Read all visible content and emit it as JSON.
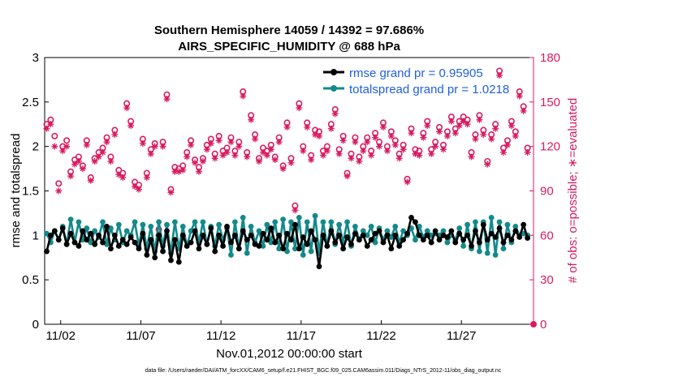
{
  "chart_data": {
    "type": "line",
    "title": "Southern Hemisphere 14059 / 14392 = 97.686%",
    "subtitle": "AIRS_SPECIFIC_HUMIDITY @ 688 hPa",
    "xlabel": "Nov.01,2012 00:00:00 start",
    "ylabel": "rmse and totalspread",
    "y2label": "# of obs: o=possible; ∗=evaluated",
    "footer": "data file: /Users/raeder/DAI/ATM_forcXX/CAM6_setup/f.e21.FHIST_BGC.f09_025.CAM6assim.011/Diags_NTrS_2012-11/obs_diag_output.nc",
    "xlim": [
      1,
      31.5
    ],
    "ylim": [
      0,
      3
    ],
    "y2lim": [
      0,
      180
    ],
    "x_ticks": [
      2,
      7,
      12,
      17,
      22,
      27
    ],
    "x_tick_labels": [
      "11/02",
      "11/07",
      "11/12",
      "11/17",
      "11/22",
      "11/27"
    ],
    "y_ticks": [
      "0",
      "0.5",
      "1",
      "1.5",
      "2",
      "2.5",
      "3"
    ],
    "y2_ticks": [
      "0",
      "30",
      "60",
      "90",
      "120",
      "150",
      "180"
    ],
    "grid": false,
    "legend_position": "top-right",
    "colors": {
      "rmse": "#000000",
      "totalspread": "#138a8a",
      "obs": "#d81b60",
      "legend_text": "#1f5fe0",
      "right_axis": "#d81b60"
    },
    "series": [
      {
        "name": "rmse grand pr = 0.95905",
        "axis": "left",
        "x": [
          1.125,
          1.375,
          1.625,
          1.875,
          2.125,
          2.375,
          2.625,
          2.875,
          3.125,
          3.375,
          3.625,
          3.875,
          4.125,
          4.375,
          4.625,
          4.875,
          5.125,
          5.375,
          5.625,
          5.875,
          6.125,
          6.375,
          6.625,
          6.875,
          7.125,
          7.375,
          7.625,
          7.875,
          8.125,
          8.375,
          8.625,
          8.875,
          9.125,
          9.375,
          9.625,
          9.875,
          10.125,
          10.375,
          10.625,
          10.875,
          11.125,
          11.375,
          11.625,
          11.875,
          12.125,
          12.375,
          12.625,
          12.875,
          13.125,
          13.375,
          13.625,
          13.875,
          14.125,
          14.375,
          14.625,
          14.875,
          15.125,
          15.375,
          15.625,
          15.875,
          16.125,
          16.375,
          16.625,
          16.875,
          17.125,
          17.375,
          17.625,
          17.875,
          18.125,
          18.375,
          18.625,
          18.875,
          19.125,
          19.375,
          19.625,
          19.875,
          20.125,
          20.375,
          20.625,
          20.875,
          21.125,
          21.375,
          21.625,
          21.875,
          22.125,
          22.375,
          22.625,
          22.875,
          23.125,
          23.375,
          23.625,
          23.875,
          24.125,
          24.375,
          24.625,
          24.875,
          25.125,
          25.375,
          25.625,
          25.875,
          26.125,
          26.375,
          26.625,
          26.875,
          27.125,
          27.375,
          27.625,
          27.875,
          28.125,
          28.375,
          28.625,
          28.875,
          29.125,
          29.375,
          29.625,
          29.875,
          30.125,
          30.375,
          30.625,
          30.875,
          31.125
        ],
        "values": [
          0.82,
          1.0,
          1.05,
          0.95,
          1.08,
          0.9,
          1.02,
          0.92,
          0.88,
          1.05,
          0.95,
          1.02,
          0.9,
          1.0,
          0.92,
          1.1,
          0.85,
          1.0,
          0.88,
          0.95,
          0.9,
          0.98,
          0.92,
          0.85,
          1.02,
          0.78,
          0.95,
          0.75,
          1.0,
          0.82,
          1.05,
          0.72,
          0.95,
          0.7,
          1.0,
          0.88,
          0.92,
          1.05,
          0.85,
          1.0,
          0.9,
          1.08,
          0.82,
          1.0,
          0.88,
          1.1,
          0.92,
          1.0,
          0.85,
          1.05,
          0.95,
          1.0,
          0.9,
          0.88,
          1.02,
          0.95,
          1.08,
          0.92,
          1.0,
          0.85,
          1.02,
          0.95,
          1.12,
          0.85,
          0.98,
          0.9,
          1.05,
          0.95,
          0.65,
          1.0,
          0.88,
          1.05,
          0.92,
          1.0,
          0.85,
          0.98,
          0.9,
          1.02,
          0.95,
          1.0,
          0.88,
          0.95,
          1.02,
          1.05,
          0.92,
          1.0,
          0.85,
          1.0,
          0.88,
          0.95,
          1.02,
          1.2,
          1.15,
          1.0,
          0.95,
          1.0,
          0.92,
          1.05,
          0.95,
          1.0,
          0.98,
          1.05,
          0.92,
          1.02,
          0.95,
          1.0,
          0.88,
          1.05,
          0.92,
          1.12,
          0.95,
          1.02,
          0.98,
          1.08,
          0.92,
          1.0,
          0.95,
          1.05,
          0.98,
          1.12,
          0.97
        ]
      },
      {
        "name": "totalspread grand pr = 1.0218",
        "axis": "left",
        "x": [
          1.125,
          1.375,
          1.625,
          1.875,
          2.125,
          2.375,
          2.625,
          2.875,
          3.125,
          3.375,
          3.625,
          3.875,
          4.125,
          4.375,
          4.625,
          4.875,
          5.125,
          5.375,
          5.625,
          5.875,
          6.125,
          6.375,
          6.625,
          6.875,
          7.125,
          7.375,
          7.625,
          7.875,
          8.125,
          8.375,
          8.625,
          8.875,
          9.125,
          9.375,
          9.625,
          9.875,
          10.125,
          10.375,
          10.625,
          10.875,
          11.125,
          11.375,
          11.625,
          11.875,
          12.125,
          12.375,
          12.625,
          12.875,
          13.125,
          13.375,
          13.625,
          13.875,
          14.125,
          14.375,
          14.625,
          14.875,
          15.125,
          15.375,
          15.625,
          15.875,
          16.125,
          16.375,
          16.625,
          16.875,
          17.125,
          17.375,
          17.625,
          17.875,
          18.125,
          18.375,
          18.625,
          18.875,
          19.125,
          19.375,
          19.625,
          19.875,
          20.125,
          20.375,
          20.625,
          20.875,
          21.125,
          21.375,
          21.625,
          21.875,
          22.125,
          22.375,
          22.625,
          22.875,
          23.125,
          23.375,
          23.625,
          23.875,
          24.125,
          24.375,
          24.625,
          24.875,
          25.125,
          25.375,
          25.625,
          25.875,
          26.125,
          26.375,
          26.625,
          26.875,
          27.125,
          27.375,
          27.625,
          27.875,
          28.125,
          28.375,
          28.625,
          28.875,
          29.125,
          29.375,
          29.625,
          29.875,
          30.125,
          30.375,
          30.625,
          30.875,
          31.125
        ],
        "values": [
          1.02,
          0.92,
          1.05,
          0.95,
          1.1,
          0.9,
          1.18,
          0.92,
          1.15,
          0.95,
          1.08,
          0.92,
          1.05,
          0.98,
          1.15,
          0.9,
          1.08,
          0.95,
          1.12,
          0.92,
          1.05,
          1.0,
          1.15,
          0.88,
          1.12,
          0.85,
          1.1,
          0.82,
          1.15,
          0.88,
          1.12,
          0.8,
          1.15,
          0.85,
          1.1,
          0.88,
          1.05,
          1.15,
          0.92,
          1.15,
          0.9,
          1.1,
          0.88,
          1.12,
          0.95,
          1.08,
          0.78,
          1.15,
          0.85,
          1.2,
          0.8,
          1.1,
          0.92,
          1.05,
          0.88,
          1.12,
          0.92,
          1.15,
          0.85,
          1.18,
          0.82,
          1.15,
          0.85,
          1.2,
          0.78,
          1.15,
          0.82,
          1.22,
          0.8,
          1.15,
          0.88,
          1.15,
          0.9,
          1.12,
          0.92,
          1.15,
          0.88,
          1.1,
          0.95,
          1.05,
          1.0,
          1.1,
          0.92,
          1.08,
          0.95,
          1.05,
          0.98,
          1.1,
          0.92,
          1.05,
          1.0,
          1.08,
          0.95,
          1.1,
          0.98,
          1.05,
          1.0,
          1.02,
          1.0,
          1.05,
          0.92,
          1.0,
          0.95,
          1.08,
          0.88,
          1.12,
          0.85,
          1.15,
          0.82,
          1.15,
          0.8,
          1.2,
          0.78,
          1.15,
          0.85,
          1.12,
          0.92,
          1.1,
          1.0,
          1.02,
          1.0
        ]
      },
      {
        "name": "obs possible",
        "axis": "right",
        "marker": "o",
        "x": [
          1.125,
          1.375,
          1.625,
          1.875,
          2.125,
          2.375,
          2.625,
          2.875,
          3.125,
          3.375,
          3.625,
          3.875,
          4.125,
          4.375,
          4.625,
          4.875,
          5.125,
          5.375,
          5.625,
          5.875,
          6.125,
          6.375,
          6.625,
          6.875,
          7.125,
          7.375,
          7.625,
          7.875,
          8.125,
          8.375,
          8.625,
          8.875,
          9.125,
          9.375,
          9.625,
          9.875,
          10.125,
          10.375,
          10.625,
          10.875,
          11.125,
          11.375,
          11.625,
          11.875,
          12.125,
          12.375,
          12.625,
          12.875,
          13.125,
          13.375,
          13.625,
          13.875,
          14.125,
          14.375,
          14.625,
          14.875,
          15.125,
          15.375,
          15.625,
          15.875,
          16.125,
          16.375,
          16.625,
          16.875,
          17.125,
          17.375,
          17.625,
          17.875,
          18.125,
          18.375,
          18.625,
          18.875,
          19.125,
          19.375,
          19.625,
          19.875,
          20.125,
          20.375,
          20.625,
          20.875,
          21.125,
          21.375,
          21.625,
          21.875,
          22.125,
          22.375,
          22.625,
          22.875,
          23.125,
          23.375,
          23.625,
          23.875,
          24.125,
          24.375,
          24.625,
          24.875,
          25.125,
          25.375,
          25.625,
          25.875,
          26.125,
          26.375,
          26.625,
          26.875,
          27.125,
          27.375,
          27.625,
          27.875,
          28.125,
          28.375,
          28.625,
          28.875,
          29.125,
          29.375,
          29.625,
          29.875,
          30.125,
          30.375,
          30.625,
          30.875,
          31.125
        ],
        "values": [
          135,
          138,
          127,
          95,
          120,
          124,
          103,
          111,
          113,
          107,
          124,
          99,
          112,
          116,
          119,
          126,
          113,
          131,
          104,
          102,
          149,
          137,
          96,
          94,
          125,
          102,
          118,
          122,
          64,
          123,
          155,
          91,
          106,
          105,
          107,
          116,
          124,
          111,
          106,
          112,
          121,
          125,
          115,
          127,
          117,
          119,
          126,
          117,
          123,
          157,
          116,
          141,
          128,
          112,
          119,
          117,
          121,
          113,
          126,
          107,
          136,
          112,
          80,
          149,
          120,
          136,
          114,
          131,
          130,
          117,
          120,
          135,
          145,
          118,
          127,
          102,
          115,
          126,
          113,
          120,
          126,
          117,
          129,
          123,
          136,
          120,
          130,
          124,
          115,
          121,
          98,
          132,
          118,
          117,
          129,
          137,
          118,
          123,
          133,
          121,
          130,
          140,
          132,
          137,
          140,
          138,
          116,
          128,
          141,
          131,
          110,
          128,
          135,
          171,
          119,
          124,
          137,
          130,
          157,
          147,
          119
        ]
      },
      {
        "name": "obs evaluated",
        "axis": "right",
        "marker": "*",
        "x": [
          1.125,
          1.375,
          1.625,
          1.875,
          2.125,
          2.375,
          2.625,
          2.875,
          3.125,
          3.375,
          3.625,
          3.875,
          4.125,
          4.375,
          4.625,
          4.875,
          5.125,
          5.375,
          5.625,
          5.875,
          6.125,
          6.375,
          6.625,
          6.875,
          7.125,
          7.375,
          7.625,
          7.875,
          8.125,
          8.375,
          8.625,
          8.875,
          9.125,
          9.375,
          9.625,
          9.875,
          10.125,
          10.375,
          10.625,
          10.875,
          11.125,
          11.375,
          11.625,
          11.875,
          12.125,
          12.375,
          12.625,
          12.875,
          13.125,
          13.375,
          13.625,
          13.875,
          14.125,
          14.375,
          14.625,
          14.875,
          15.125,
          15.375,
          15.625,
          15.875,
          16.125,
          16.375,
          16.625,
          16.875,
          17.125,
          17.375,
          17.625,
          17.875,
          18.125,
          18.375,
          18.625,
          18.875,
          19.125,
          19.375,
          19.625,
          19.875,
          20.125,
          20.375,
          20.625,
          20.875,
          21.125,
          21.375,
          21.625,
          21.875,
          22.125,
          22.375,
          22.625,
          22.875,
          23.125,
          23.375,
          23.625,
          23.875,
          24.125,
          24.375,
          24.625,
          24.875,
          25.125,
          25.375,
          25.625,
          25.875,
          26.125,
          26.375,
          26.625,
          26.875,
          27.125,
          27.375,
          27.625,
          27.875,
          28.125,
          28.375,
          28.625,
          28.875,
          29.125,
          29.375,
          29.625,
          29.875,
          30.125,
          30.375,
          30.625,
          30.875,
          31.125
        ],
        "values": [
          132,
          135,
          120,
          90,
          117,
          120,
          100,
          108,
          110,
          105,
          121,
          97,
          110,
          113,
          116,
          123,
          110,
          128,
          101,
          99,
          146,
          134,
          93,
          91,
          122,
          99,
          115,
          120,
          60,
          120,
          152,
          89,
          103,
          103,
          104,
          113,
          121,
          109,
          103,
          110,
          118,
          122,
          112,
          124,
          114,
          116,
          123,
          114,
          120,
          154,
          113,
          138,
          125,
          110,
          116,
          114,
          118,
          111,
          123,
          105,
          133,
          109,
          77,
          146,
          117,
          133,
          111,
          128,
          127,
          114,
          117,
          132,
          142,
          115,
          124,
          100,
          112,
          123,
          110,
          117,
          123,
          114,
          126,
          120,
          133,
          117,
          127,
          121,
          112,
          118,
          96,
          129,
          115,
          114,
          126,
          134,
          115,
          120,
          130,
          118,
          127,
          137,
          129,
          134,
          137,
          135,
          113,
          125,
          138,
          128,
          108,
          125,
          132,
          168,
          116,
          121,
          134,
          127,
          154,
          144,
          116
        ]
      }
    ],
    "end_marker": {
      "x": 31.5,
      "y2": 0
    }
  }
}
